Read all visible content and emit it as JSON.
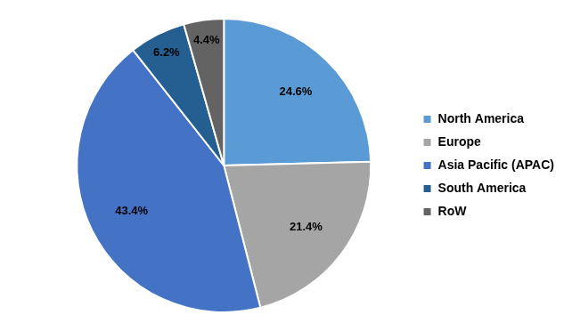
{
  "chart_data": {
    "type": "pie",
    "categories": [
      "North America",
      "Europe",
      "Asia Pacific (APAC)",
      "South America",
      "RoW"
    ],
    "values": [
      24.6,
      21.4,
      43.4,
      6.2,
      4.4
    ],
    "value_labels": [
      "24.6%",
      "21.4%",
      "43.4%",
      "6.2%",
      "4.4%"
    ],
    "colors": [
      "#5b9bd5",
      "#a5a5a5",
      "#4472c4",
      "#255e91",
      "#636363"
    ],
    "data_labels": true,
    "legend": "right"
  }
}
